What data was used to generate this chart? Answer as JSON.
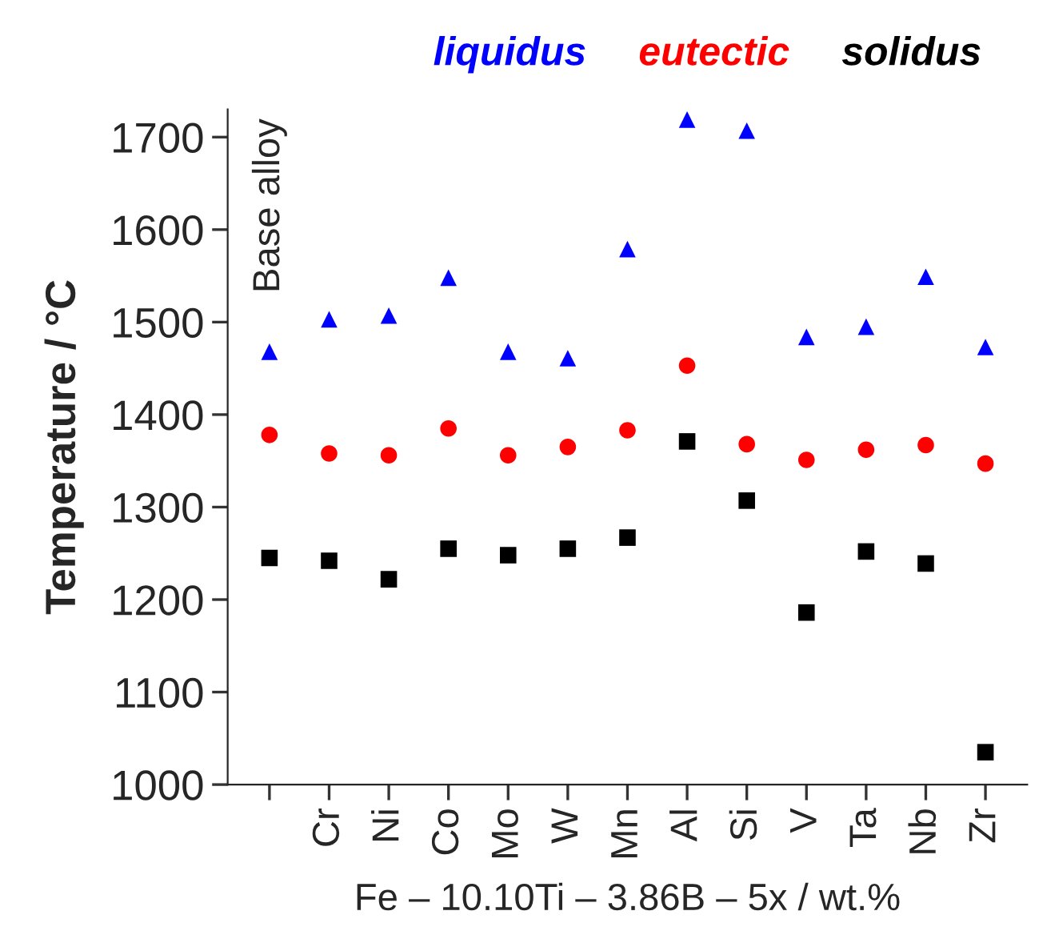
{
  "chart_data": {
    "type": "scatter",
    "categories": [
      null,
      "Cr",
      "Ni",
      "Co",
      "Mo",
      "W",
      "Mn",
      "Al",
      "Si",
      "V",
      "Ta",
      "Nb",
      "Zr"
    ],
    "series": [
      {
        "name": "liquidus",
        "color": "#0000ff",
        "marker": "triangle",
        "values": [
          1468,
          1503,
          1507,
          1548,
          1468,
          1461,
          1579,
          1719,
          1707,
          1484,
          1495,
          1549,
          1473
        ]
      },
      {
        "name": "eutectic",
        "color": "#ff0000",
        "marker": "circle",
        "values": [
          1378,
          1358,
          1356,
          1385,
          1356,
          1365,
          1383,
          1453,
          1368,
          1351,
          1362,
          1367,
          1347
        ]
      },
      {
        "name": "solidus",
        "color": "#000000",
        "marker": "square",
        "values": [
          1245,
          1242,
          1222,
          1255,
          1248,
          1255,
          1267,
          1371,
          1307,
          1186,
          1252,
          1239,
          1035
        ]
      }
    ],
    "ylabel": "Temperature / °C",
    "xlabel": "Fe – 10.10Ti – 3.86B – 5x / wt.%",
    "annotations": [
      "Base alloy"
    ],
    "ylim": [
      1000,
      1730
    ],
    "yticks": [
      1000,
      1100,
      1200,
      1300,
      1400,
      1500,
      1600,
      1700
    ],
    "grid": false,
    "legend": "top"
  }
}
